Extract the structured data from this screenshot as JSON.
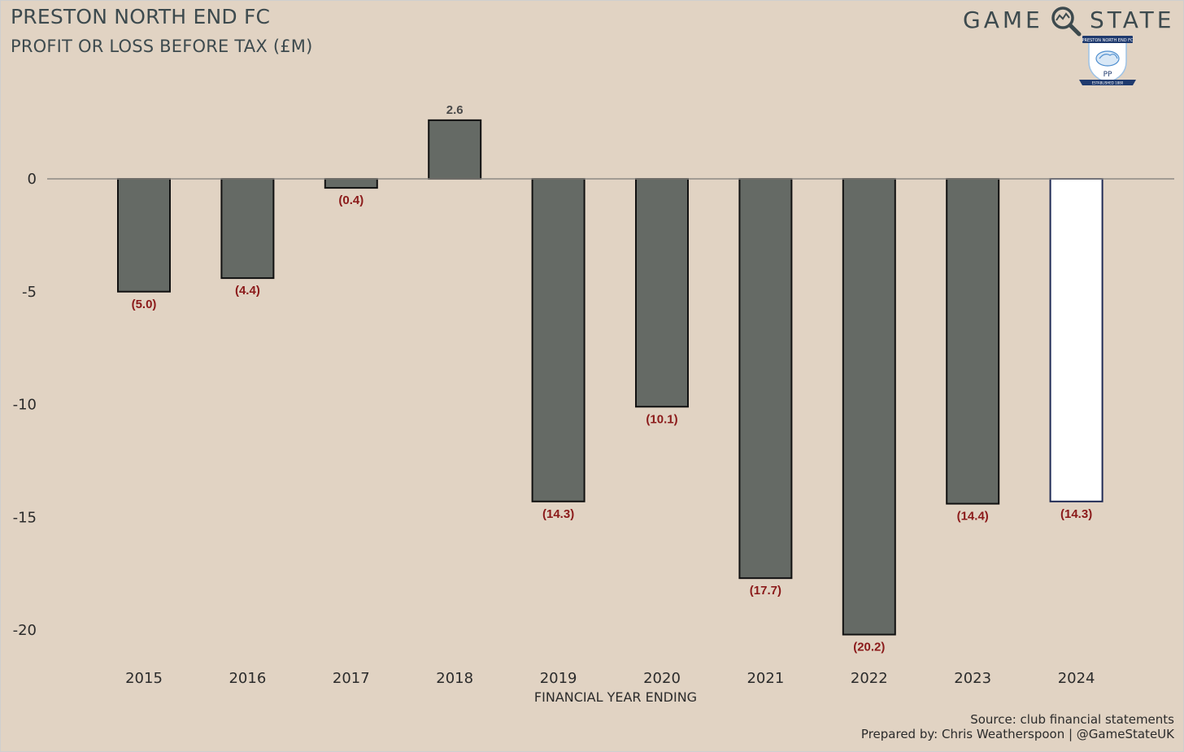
{
  "header": {
    "title": "PRESTON NORTH END FC",
    "subtitle": "PROFIT OR LOSS BEFORE TAX (£M)"
  },
  "brand": {
    "word1": "GAME",
    "word2": "STATE",
    "icon": "magnifying-glass-icon",
    "crest": {
      "name": "preston-north-end-crest",
      "top_text": "PRESTON NORTH END FC",
      "letters": "PP",
      "bottom_text": "ESTABLISHED 1880"
    }
  },
  "footer": {
    "source": "Source: club financial statements",
    "prepared": "Prepared by: Chris Weatherspoon | @GameStateUK"
  },
  "colors": {
    "background": "#e1d3c3",
    "bar_fill": "#656a65",
    "highlight_fill": "#ffffff",
    "highlight_stroke": "#1f2a55",
    "negative_label": "#8b1a1a",
    "positive_label": "#4a4a4a",
    "text": "#3d4a4e"
  },
  "chart_data": {
    "type": "bar",
    "categories": [
      "2015",
      "2016",
      "2017",
      "2018",
      "2019",
      "2020",
      "2021",
      "2022",
      "2023",
      "2024"
    ],
    "values": [
      -5.0,
      -4.4,
      -0.4,
      2.6,
      -14.3,
      -10.1,
      -17.7,
      -20.2,
      -14.4,
      -14.3
    ],
    "data_labels": [
      "(5.0)",
      "(4.4)",
      "(0.4)",
      "2.6",
      "(14.3)",
      "(10.1)",
      "(17.7)",
      "(20.2)",
      "(14.4)",
      "(14.3)"
    ],
    "highlight_index": 9,
    "title": "PRESTON NORTH END FC",
    "subtitle": "PROFIT OR LOSS BEFORE TAX (£M)",
    "xlabel": "FINANCIAL YEAR ENDING",
    "ylabel": "",
    "yticks": [
      0,
      -5,
      -10,
      -15,
      -20
    ],
    "ylim": [
      -21,
      4
    ],
    "grid": false,
    "zero_line": true
  }
}
